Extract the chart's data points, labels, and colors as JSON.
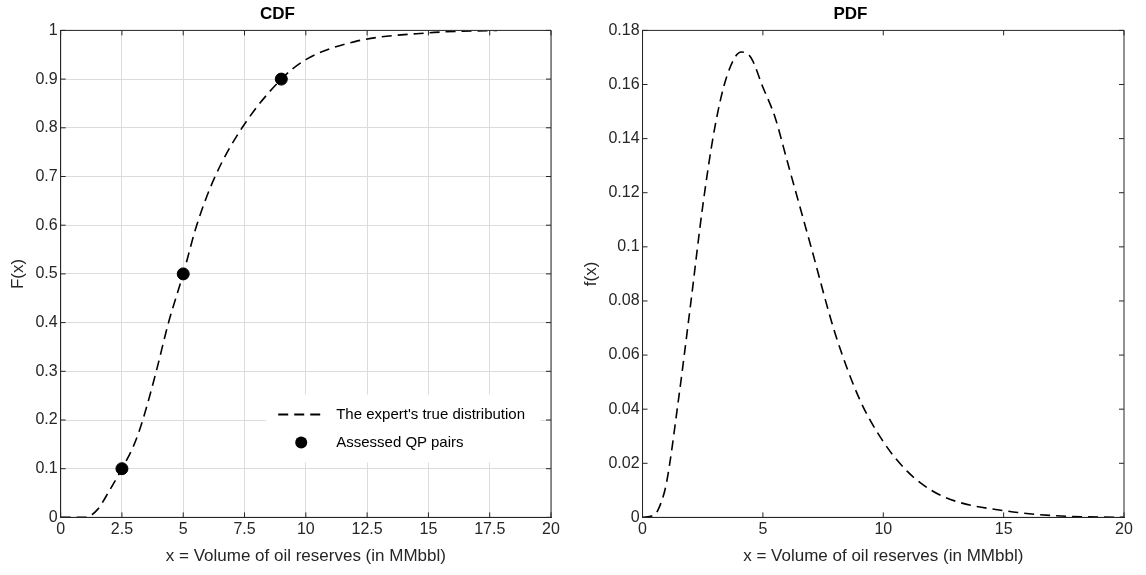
{
  "chart_data": [
    {
      "type": "line",
      "title": "CDF",
      "xlabel": "x = Volume of oil reserves (in MMbbl)",
      "ylabel": "F(x)",
      "xlim": [
        0,
        20
      ],
      "ylim": [
        0,
        1
      ],
      "xticks": [
        0,
        2.5,
        5,
        7.5,
        10,
        12.5,
        15,
        17.5,
        20
      ],
      "yticks": [
        0,
        0.1,
        0.2,
        0.3,
        0.4,
        0.5,
        0.6,
        0.7,
        0.8,
        0.9,
        1
      ],
      "grid": true,
      "legend": "bottom right",
      "series": [
        {
          "name": "The expert's true distribution",
          "color": "#000000",
          "line_style": "dashed",
          "marker": "none",
          "x": [
            0,
            1,
            1.5,
            2,
            2.5,
            3,
            3.35,
            3.9,
            4.4,
            5,
            5.55,
            6.3,
            7.4,
            9,
            10,
            12,
            15,
            17.8
          ],
          "values": [
            0,
            0,
            0.016,
            0.056,
            0.1,
            0.15,
            0.2,
            0.3,
            0.4,
            0.5,
            0.6,
            0.7,
            0.8,
            0.9,
            0.94,
            0.977,
            0.995,
            1
          ]
        },
        {
          "name": "Assessed QP pairs",
          "type": "scatter",
          "color": "#000000",
          "marker": "circle",
          "x": [
            2.5,
            5,
            9
          ],
          "values": [
            0.1,
            0.5,
            0.9
          ]
        }
      ]
    },
    {
      "type": "line",
      "title": "PDF",
      "xlabel": "x = Volume of oil reserves (in MMbbl)",
      "ylabel": "f(x)",
      "xlim": [
        0,
        20
      ],
      "ylim": [
        0,
        0.18
      ],
      "xticks": [
        0,
        5,
        10,
        15,
        20
      ],
      "yticks": [
        0,
        0.02,
        0.04,
        0.06,
        0.08,
        0.1,
        0.12,
        0.14,
        0.16,
        0.18
      ],
      "grid": false,
      "series": [
        {
          "color": "#000000",
          "line_style": "dashed",
          "marker": "none",
          "x": [
            0,
            0.5,
            0.75,
            1,
            1.5,
            2,
            2.5,
            3,
            3.5,
            4.1,
            4.5,
            5,
            5.5,
            6,
            7,
            8,
            9,
            10,
            11,
            12,
            13,
            15,
            17,
            20
          ],
          "values": [
            0,
            0.001,
            0.005,
            0.013,
            0.044,
            0.079,
            0.115,
            0.144,
            0.163,
            0.172,
            0.17,
            0.159,
            0.148,
            0.132,
            0.1,
            0.068,
            0.044,
            0.028,
            0.017,
            0.01,
            0.006,
            0.0025,
            0.0007,
            0
          ]
        }
      ]
    }
  ]
}
